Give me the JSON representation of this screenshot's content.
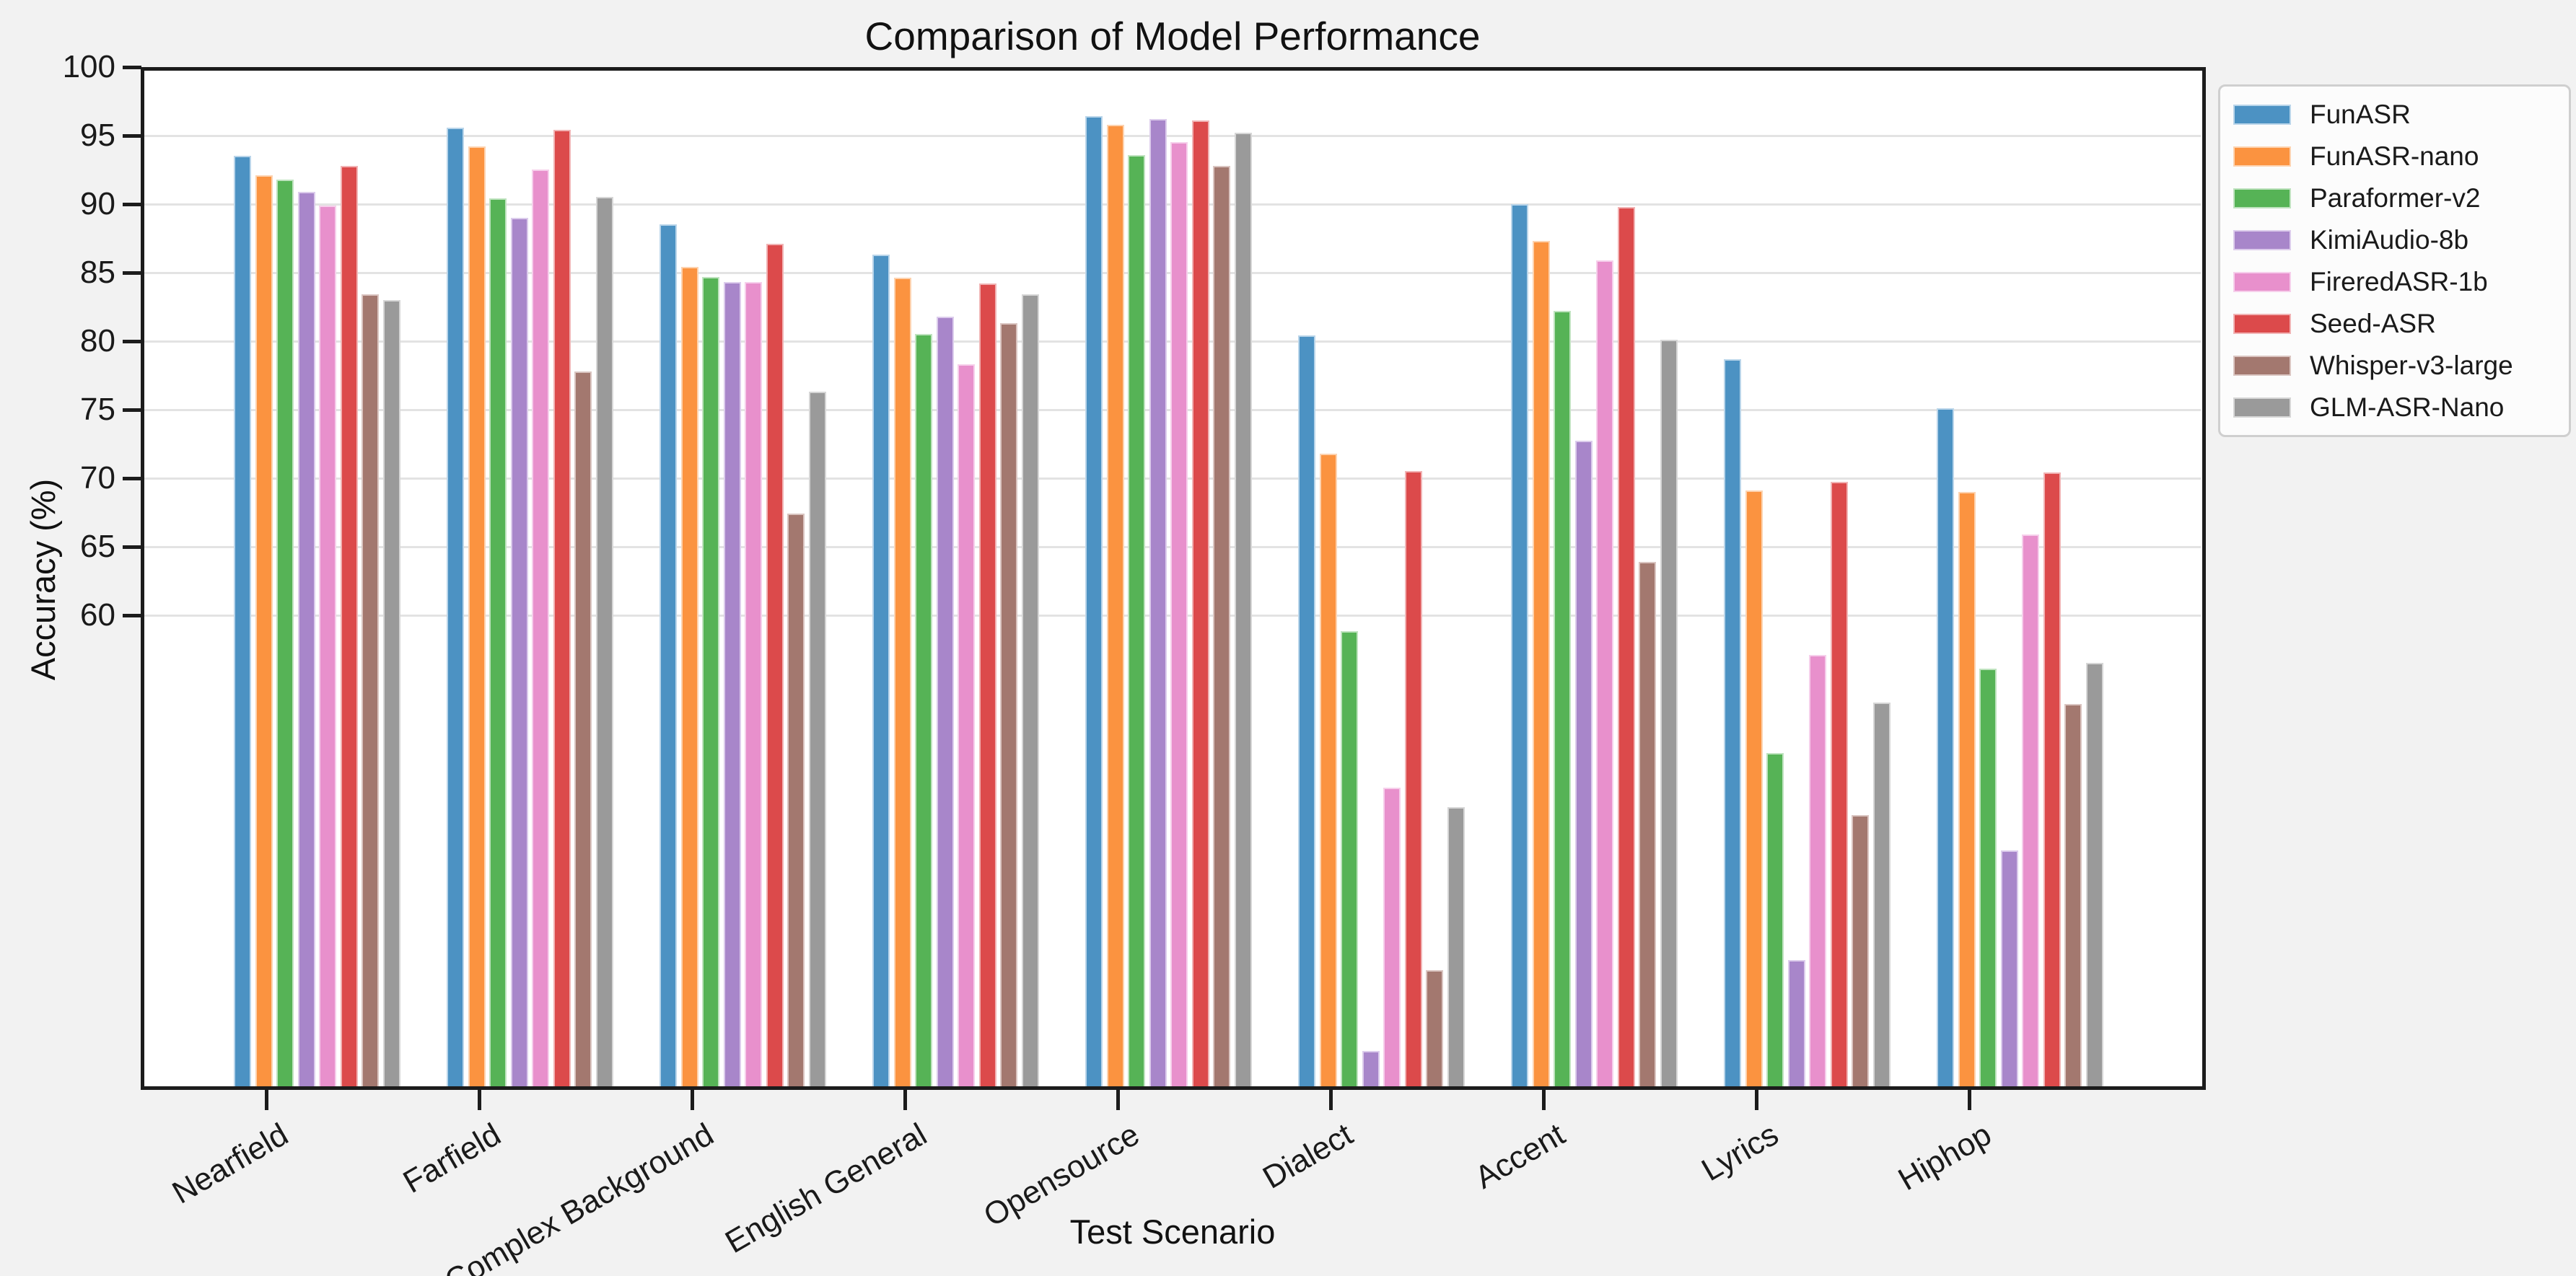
{
  "chart_data": {
    "type": "bar",
    "title": "Comparison of Model Performance",
    "xlabel": "Test Scenario",
    "ylabel": "Accuracy (%)",
    "categories": [
      "Nearfield",
      "Farfield",
      "Complex Background",
      "English General",
      "Opensource",
      "Dialect",
      "Accent",
      "Lyrics",
      "Hiphop"
    ],
    "series": [
      {
        "name": "FunASR",
        "color": "#4c92c3",
        "edge": "#b9d5ea",
        "values": [
          93.5,
          95.6,
          88.5,
          86.3,
          96.4,
          80.4,
          90.0,
          78.7,
          75.1
        ]
      },
      {
        "name": "FunASR-nano",
        "color": "#fb9340",
        "edge": "#fdd3b0",
        "values": [
          92.1,
          94.2,
          85.4,
          84.6,
          95.8,
          71.8,
          87.3,
          69.1,
          69.0
        ]
      },
      {
        "name": "Paraformer-v2",
        "color": "#56b356",
        "edge": "#bfe3bf",
        "values": [
          91.8,
          90.4,
          84.7,
          80.5,
          93.6,
          58.8,
          82.2,
          49.9,
          56.1
        ]
      },
      {
        "name": "KimiAudio-8b",
        "color": "#a886ca",
        "edge": "#dcccec",
        "values": [
          90.9,
          89.0,
          84.3,
          81.8,
          96.2,
          28.2,
          72.7,
          34.8,
          42.8
        ]
      },
      {
        "name": "FireredASR-1b",
        "color": "#e890cc",
        "edge": "#f6cfeb",
        "values": [
          89.9,
          92.5,
          84.3,
          78.3,
          94.5,
          47.4,
          85.9,
          57.1,
          65.9
        ]
      },
      {
        "name": "Seed-ASR",
        "color": "#dc4a4b",
        "edge": "#f1b3b4",
        "values": [
          92.8,
          95.4,
          87.1,
          84.2,
          96.1,
          70.5,
          89.8,
          69.7,
          70.4
        ]
      },
      {
        "name": "Whisper-v3-large",
        "color": "#a3786f",
        "edge": "#dac5c1",
        "values": [
          83.4,
          77.8,
          67.4,
          81.3,
          92.8,
          34.1,
          63.9,
          45.4,
          53.5
        ]
      },
      {
        "name": "GLM-ASR-Nano",
        "color": "#9a9a9a",
        "edge": "#d6d6d6",
        "values": [
          83.0,
          90.5,
          76.3,
          83.4,
          95.2,
          46.0,
          80.1,
          53.6,
          56.5
        ]
      }
    ],
    "y_ticks": [
      100,
      95,
      90,
      85,
      80,
      75,
      70,
      65,
      60
    ],
    "ylim": [
      25.6,
      100
    ],
    "grid": "horizontal",
    "legend_position": "outside-right",
    "background": "#f2f2f2",
    "plot_background": "#ffffff",
    "spine_color": "#1c1c1c"
  }
}
